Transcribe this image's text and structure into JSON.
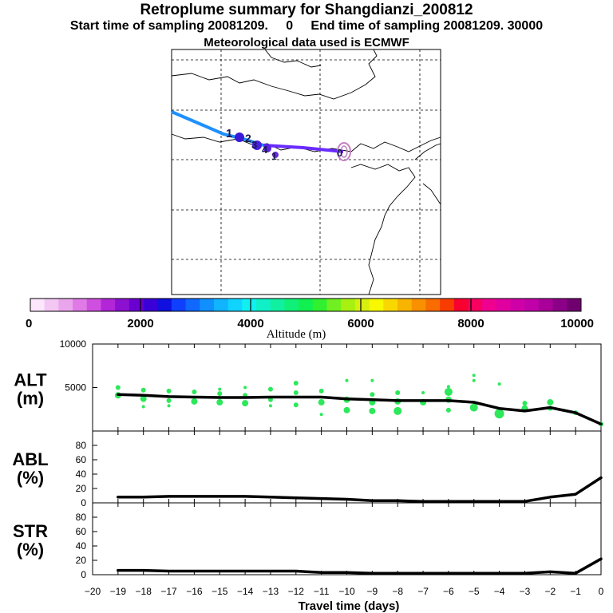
{
  "header": {
    "title": "Retroplume summary for Shangdianzi_200812",
    "subtitle": "Start time of sampling 20081209.     0     End time of sampling 20081209. 30000",
    "met_line": "Meteorological data used is ECMWF"
  },
  "map": {
    "track_line_color": "#1e90ff",
    "track_line_color_2": "#6a2bff",
    "receptor_marker_color": "#c080c0",
    "point_labels": [
      "1",
      "2",
      "3",
      "4",
      "1",
      "0"
    ]
  },
  "colorbar": {
    "label": "Altitude (m)",
    "ticks": [
      "0",
      "2000",
      "4000",
      "6000",
      "8000",
      "10000"
    ],
    "colors": [
      "#fbe6fb",
      "#f3c6f3",
      "#eaa6ec",
      "#e07ae6",
      "#cf4fe0",
      "#b226d8",
      "#8c10d0",
      "#6a00d0",
      "#3a00d8",
      "#1010e0",
      "#1040ff",
      "#1068ff",
      "#1090ff",
      "#10b4ff",
      "#10d4ff",
      "#10f0f0",
      "#10f0c8",
      "#10f0a0",
      "#10f078",
      "#10f050",
      "#30f030",
      "#70f020",
      "#a8f010",
      "#d8f010",
      "#f8f800",
      "#f8d800",
      "#f8b400",
      "#f89000",
      "#f86c00",
      "#f83c00",
      "#f80030",
      "#f80060",
      "#f00090",
      "#e000a0",
      "#d000a8",
      "#c000a8",
      "#a80098",
      "#8c0088",
      "#700070"
    ]
  },
  "chart_data": [
    {
      "type": "line",
      "name": "ALT",
      "ylabel": "ALT\n(m)",
      "ylabel_lines": [
        "ALT",
        "(m)"
      ],
      "ylim": [
        0,
        10000
      ],
      "yticks": [
        5000,
        10000
      ],
      "ytick_labels": [
        "5000",
        "10000"
      ],
      "x": [
        -19,
        -18,
        -17,
        -16,
        -15,
        -14,
        -13,
        -12,
        -11,
        -10,
        -9,
        -8,
        -7,
        -6,
        -5,
        -4,
        -3,
        -2,
        -1,
        0
      ],
      "values": [
        4200,
        4100,
        3950,
        3900,
        3850,
        3850,
        3900,
        3900,
        3900,
        3700,
        3600,
        3500,
        3500,
        3500,
        3300,
        2600,
        2300,
        2700,
        2100,
        800
      ],
      "scatter_color": "#2de85a",
      "scatter_points": [
        {
          "x": -19,
          "y": 4100,
          "r": 4
        },
        {
          "x": -19,
          "y": 5000,
          "r": 3
        },
        {
          "x": -18,
          "y": 3700,
          "r": 4
        },
        {
          "x": -18,
          "y": 4700,
          "r": 3
        },
        {
          "x": -18,
          "y": 2800,
          "r": 2
        },
        {
          "x": -17,
          "y": 3500,
          "r": 3
        },
        {
          "x": -17,
          "y": 4600,
          "r": 3
        },
        {
          "x": -17,
          "y": 2900,
          "r": 2
        },
        {
          "x": -16,
          "y": 3400,
          "r": 4
        },
        {
          "x": -16,
          "y": 4500,
          "r": 3
        },
        {
          "x": -15,
          "y": 3300,
          "r": 4
        },
        {
          "x": -15,
          "y": 4300,
          "r": 3
        },
        {
          "x": -15,
          "y": 4800,
          "r": 2
        },
        {
          "x": -14,
          "y": 3200,
          "r": 4
        },
        {
          "x": -14,
          "y": 4100,
          "r": 3
        },
        {
          "x": -14,
          "y": 5000,
          "r": 2
        },
        {
          "x": -13,
          "y": 3600,
          "r": 3
        },
        {
          "x": -13,
          "y": 4800,
          "r": 3
        },
        {
          "x": -13,
          "y": 2900,
          "r": 2
        },
        {
          "x": -12,
          "y": 3000,
          "r": 3
        },
        {
          "x": -12,
          "y": 4400,
          "r": 3
        },
        {
          "x": -12,
          "y": 5500,
          "r": 3
        },
        {
          "x": -11,
          "y": 3300,
          "r": 4
        },
        {
          "x": -11,
          "y": 4600,
          "r": 3
        },
        {
          "x": -11,
          "y": 1900,
          "r": 2
        },
        {
          "x": -10,
          "y": 2400,
          "r": 4
        },
        {
          "x": -10,
          "y": 3600,
          "r": 4
        },
        {
          "x": -10,
          "y": 5800,
          "r": 2
        },
        {
          "x": -9,
          "y": 2300,
          "r": 4
        },
        {
          "x": -9,
          "y": 3300,
          "r": 4
        },
        {
          "x": -9,
          "y": 4200,
          "r": 3
        },
        {
          "x": -9,
          "y": 5800,
          "r": 2
        },
        {
          "x": -8,
          "y": 2300,
          "r": 5
        },
        {
          "x": -8,
          "y": 3400,
          "r": 4
        },
        {
          "x": -8,
          "y": 4400,
          "r": 3
        },
        {
          "x": -7,
          "y": 3300,
          "r": 4
        },
        {
          "x": -7,
          "y": 4400,
          "r": 2
        },
        {
          "x": -6,
          "y": 3600,
          "r": 4
        },
        {
          "x": -6,
          "y": 4500,
          "r": 5
        },
        {
          "x": -6,
          "y": 2400,
          "r": 3
        },
        {
          "x": -6,
          "y": 5100,
          "r": 2
        },
        {
          "x": -5,
          "y": 2700,
          "r": 5
        },
        {
          "x": -5,
          "y": 6400,
          "r": 2
        },
        {
          "x": -5,
          "y": 5800,
          "r": 2
        },
        {
          "x": -4,
          "y": 2000,
          "r": 6
        },
        {
          "x": -4,
          "y": 5400,
          "r": 2
        },
        {
          "x": -3,
          "y": 2600,
          "r": 4
        },
        {
          "x": -3,
          "y": 3200,
          "r": 3
        },
        {
          "x": -2,
          "y": 3300,
          "r": 4
        },
        {
          "x": -2,
          "y": 2600,
          "r": 3
        },
        {
          "x": -1,
          "y": 2100,
          "r": 3
        },
        {
          "x": 0,
          "y": 800,
          "r": 3
        }
      ]
    },
    {
      "type": "line",
      "name": "ABL",
      "ylabel_lines": [
        "ABL",
        "(%)"
      ],
      "ylim": [
        0,
        100
      ],
      "yticks": [
        0,
        20,
        40,
        60,
        80
      ],
      "ytick_labels": [
        "0",
        "20",
        "40",
        "60",
        "80"
      ],
      "x": [
        -19,
        -18,
        -17,
        -16,
        -15,
        -14,
        -13,
        -12,
        -11,
        -10,
        -9,
        -8,
        -7,
        -6,
        -5,
        -4,
        -3,
        -2,
        -1,
        0
      ],
      "values": [
        8,
        8,
        9,
        9,
        9,
        9,
        8,
        7,
        6,
        5,
        3,
        3,
        2,
        2,
        2,
        2,
        2,
        8,
        12,
        35
      ]
    },
    {
      "type": "line",
      "name": "STR",
      "ylabel_lines": [
        "STR",
        "(%)"
      ],
      "ylim": [
        0,
        100
      ],
      "yticks": [
        0,
        20,
        40,
        60,
        80
      ],
      "ytick_labels": [
        "0",
        "20",
        "40",
        "60",
        "80"
      ],
      "x": [
        -19,
        -18,
        -17,
        -16,
        -15,
        -14,
        -13,
        -12,
        -11,
        -10,
        -9,
        -8,
        -7,
        -6,
        -5,
        -4,
        -3,
        -2,
        -1,
        0
      ],
      "values": [
        6,
        6,
        5,
        5,
        5,
        5,
        5,
        5,
        3,
        3,
        2,
        2,
        2,
        2,
        2,
        2,
        2,
        4,
        2,
        22
      ]
    }
  ],
  "xaxis": {
    "label": "Travel time (days)",
    "ticks": [
      -20,
      -19,
      -18,
      -17,
      -16,
      -15,
      -14,
      -13,
      -12,
      -11,
      -10,
      -9,
      -8,
      -7,
      -6,
      -5,
      -4,
      -3,
      -2,
      -1,
      0
    ],
    "tick_labels": [
      "−20",
      "−19",
      "−18",
      "−17",
      "−16",
      "−15",
      "−14",
      "−13",
      "−12",
      "−11",
      "−10",
      "−9",
      "−8",
      "−7",
      "−6",
      "−5",
      "−4",
      "−3",
      "−2",
      "−1",
      "0"
    ],
    "xlim": [
      -20,
      0
    ]
  }
}
